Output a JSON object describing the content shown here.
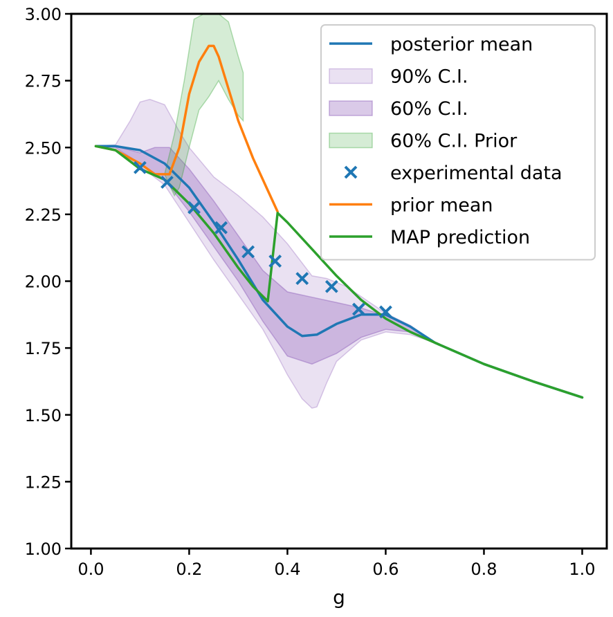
{
  "chart_data": {
    "type": "line",
    "title": "",
    "xlabel": "g",
    "ylabel": "",
    "xlim": [
      -0.04,
      1.05
    ],
    "ylim": [
      1.0,
      3.0
    ],
    "grid": false,
    "legend_position": "top-right",
    "x_ticks": [
      0.0,
      0.2,
      0.4,
      0.6,
      0.8,
      1.0
    ],
    "x_tick_labels": [
      "0.0",
      "0.2",
      "0.4",
      "0.6",
      "0.8",
      "1.0"
    ],
    "y_ticks": [
      1.0,
      1.25,
      1.5,
      1.75,
      2.0,
      2.25,
      2.5,
      2.75,
      3.0
    ],
    "y_tick_labels": [
      "1.00",
      "1.25",
      "1.50",
      "1.75",
      "2.00",
      "2.25",
      "2.50",
      "2.75",
      "3.00"
    ],
    "colors": {
      "posterior_mean": "#1f77b4",
      "prior_mean": "#ff7f0e",
      "map_prediction": "#2ca02c",
      "ci90": "#9467bd",
      "ci60": "#9467bd",
      "ci60_prior": "#2ca02c",
      "experimental_data": "#1f77b4"
    },
    "legend": [
      {
        "key": "posterior_mean",
        "label": "posterior mean",
        "kind": "line"
      },
      {
        "key": "ci90",
        "label": "90% C.I.",
        "kind": "band90"
      },
      {
        "key": "ci60",
        "label": "60% C.I.",
        "kind": "band60"
      },
      {
        "key": "ci60_prior",
        "label": "60% C.I. Prior",
        "kind": "bandprior"
      },
      {
        "key": "experimental_data",
        "label": "experimental data",
        "kind": "marker"
      },
      {
        "key": "prior_mean",
        "label": "prior mean",
        "kind": "line"
      },
      {
        "key": "map_prediction",
        "label": "MAP prediction",
        "kind": "line"
      }
    ],
    "series": [
      {
        "name": "posterior mean",
        "key": "posterior_mean",
        "points": [
          [
            0.01,
            2.505
          ],
          [
            0.05,
            2.505
          ],
          [
            0.1,
            2.49
          ],
          [
            0.15,
            2.44
          ],
          [
            0.2,
            2.35
          ],
          [
            0.25,
            2.22
          ],
          [
            0.3,
            2.08
          ],
          [
            0.35,
            1.93
          ],
          [
            0.4,
            1.83
          ],
          [
            0.43,
            1.795
          ],
          [
            0.46,
            1.8
          ],
          [
            0.5,
            1.84
          ],
          [
            0.55,
            1.875
          ],
          [
            0.6,
            1.875
          ],
          [
            0.65,
            1.83
          ],
          [
            0.7,
            1.77
          ],
          [
            0.8,
            1.69
          ],
          [
            0.9,
            1.625
          ],
          [
            1.0,
            1.565
          ]
        ]
      },
      {
        "name": "prior mean",
        "key": "prior_mean",
        "points": [
          [
            0.01,
            2.505
          ],
          [
            0.05,
            2.49
          ],
          [
            0.1,
            2.44
          ],
          [
            0.13,
            2.4
          ],
          [
            0.16,
            2.4
          ],
          [
            0.18,
            2.5
          ],
          [
            0.2,
            2.7
          ],
          [
            0.22,
            2.82
          ],
          [
            0.24,
            2.88
          ],
          [
            0.25,
            2.88
          ],
          [
            0.26,
            2.84
          ],
          [
            0.28,
            2.72
          ],
          [
            0.3,
            2.6
          ],
          [
            0.33,
            2.46
          ],
          [
            0.36,
            2.34
          ],
          [
            0.38,
            2.26
          ]
        ]
      },
      {
        "name": "MAP prediction",
        "key": "map_prediction",
        "points": [
          [
            0.01,
            2.505
          ],
          [
            0.05,
            2.49
          ],
          [
            0.1,
            2.42
          ],
          [
            0.15,
            2.38
          ],
          [
            0.2,
            2.29
          ],
          [
            0.25,
            2.18
          ],
          [
            0.3,
            2.05
          ],
          [
            0.33,
            1.98
          ],
          [
            0.36,
            1.925
          ],
          [
            0.38,
            2.255
          ],
          [
            0.4,
            2.22
          ],
          [
            0.45,
            2.12
          ],
          [
            0.5,
            2.02
          ],
          [
            0.55,
            1.93
          ],
          [
            0.6,
            1.86
          ],
          [
            0.65,
            1.81
          ],
          [
            0.7,
            1.77
          ],
          [
            0.8,
            1.69
          ],
          [
            0.9,
            1.625
          ],
          [
            1.0,
            1.565
          ]
        ]
      }
    ],
    "bands": [
      {
        "key": "ci90",
        "upper": [
          [
            0.01,
            2.505
          ],
          [
            0.05,
            2.51
          ],
          [
            0.08,
            2.6
          ],
          [
            0.1,
            2.67
          ],
          [
            0.12,
            2.68
          ],
          [
            0.15,
            2.66
          ],
          [
            0.18,
            2.56
          ],
          [
            0.2,
            2.5
          ],
          [
            0.25,
            2.39
          ],
          [
            0.3,
            2.32
          ],
          [
            0.35,
            2.24
          ],
          [
            0.4,
            2.14
          ],
          [
            0.45,
            2.02
          ],
          [
            0.48,
            2.01
          ],
          [
            0.52,
            1.98
          ],
          [
            0.56,
            1.93
          ],
          [
            0.6,
            1.88
          ],
          [
            0.65,
            1.835
          ],
          [
            0.7,
            1.77
          ]
        ],
        "lower": [
          [
            0.01,
            2.505
          ],
          [
            0.05,
            2.49
          ],
          [
            0.1,
            2.43
          ],
          [
            0.15,
            2.36
          ],
          [
            0.2,
            2.22
          ],
          [
            0.25,
            2.08
          ],
          [
            0.3,
            1.95
          ],
          [
            0.35,
            1.82
          ],
          [
            0.38,
            1.72
          ],
          [
            0.4,
            1.65
          ],
          [
            0.43,
            1.56
          ],
          [
            0.45,
            1.525
          ],
          [
            0.46,
            1.53
          ],
          [
            0.48,
            1.62
          ],
          [
            0.5,
            1.7
          ],
          [
            0.55,
            1.78
          ],
          [
            0.6,
            1.81
          ],
          [
            0.65,
            1.8
          ],
          [
            0.7,
            1.77
          ]
        ]
      },
      {
        "key": "ci60",
        "upper": [
          [
            0.01,
            2.505
          ],
          [
            0.05,
            2.505
          ],
          [
            0.1,
            2.48
          ],
          [
            0.13,
            2.5
          ],
          [
            0.16,
            2.5
          ],
          [
            0.2,
            2.42
          ],
          [
            0.25,
            2.3
          ],
          [
            0.3,
            2.17
          ],
          [
            0.35,
            2.04
          ],
          [
            0.4,
            1.96
          ],
          [
            0.45,
            1.94
          ],
          [
            0.5,
            1.92
          ],
          [
            0.55,
            1.9
          ],
          [
            0.6,
            1.87
          ],
          [
            0.65,
            1.83
          ],
          [
            0.7,
            1.77
          ]
        ],
        "lower": [
          [
            0.01,
            2.505
          ],
          [
            0.05,
            2.5
          ],
          [
            0.1,
            2.44
          ],
          [
            0.15,
            2.38
          ],
          [
            0.2,
            2.26
          ],
          [
            0.25,
            2.13
          ],
          [
            0.3,
            2.0
          ],
          [
            0.35,
            1.85
          ],
          [
            0.4,
            1.72
          ],
          [
            0.45,
            1.69
          ],
          [
            0.5,
            1.73
          ],
          [
            0.55,
            1.79
          ],
          [
            0.6,
            1.82
          ],
          [
            0.65,
            1.81
          ],
          [
            0.7,
            1.77
          ]
        ]
      },
      {
        "key": "ci60_prior",
        "upper": [
          [
            0.15,
            2.4
          ],
          [
            0.17,
            2.55
          ],
          [
            0.19,
            2.75
          ],
          [
            0.21,
            2.98
          ],
          [
            0.23,
            3.0
          ],
          [
            0.26,
            3.0
          ],
          [
            0.28,
            2.97
          ],
          [
            0.3,
            2.84
          ],
          [
            0.31,
            2.78
          ]
        ],
        "lower": [
          [
            0.15,
            2.4
          ],
          [
            0.16,
            2.36
          ],
          [
            0.17,
            2.32
          ],
          [
            0.18,
            2.35
          ],
          [
            0.2,
            2.5
          ],
          [
            0.22,
            2.64
          ],
          [
            0.24,
            2.69
          ],
          [
            0.26,
            2.75
          ],
          [
            0.28,
            2.68
          ],
          [
            0.3,
            2.62
          ],
          [
            0.31,
            2.6
          ]
        ]
      }
    ],
    "experimental_data": [
      [
        0.1,
        2.425
      ],
      [
        0.155,
        2.37
      ],
      [
        0.21,
        2.275
      ],
      [
        0.265,
        2.2
      ],
      [
        0.32,
        2.11
      ],
      [
        0.375,
        2.075
      ],
      [
        0.43,
        2.01
      ],
      [
        0.49,
        1.98
      ],
      [
        0.545,
        1.895
      ],
      [
        0.6,
        1.885
      ]
    ]
  }
}
